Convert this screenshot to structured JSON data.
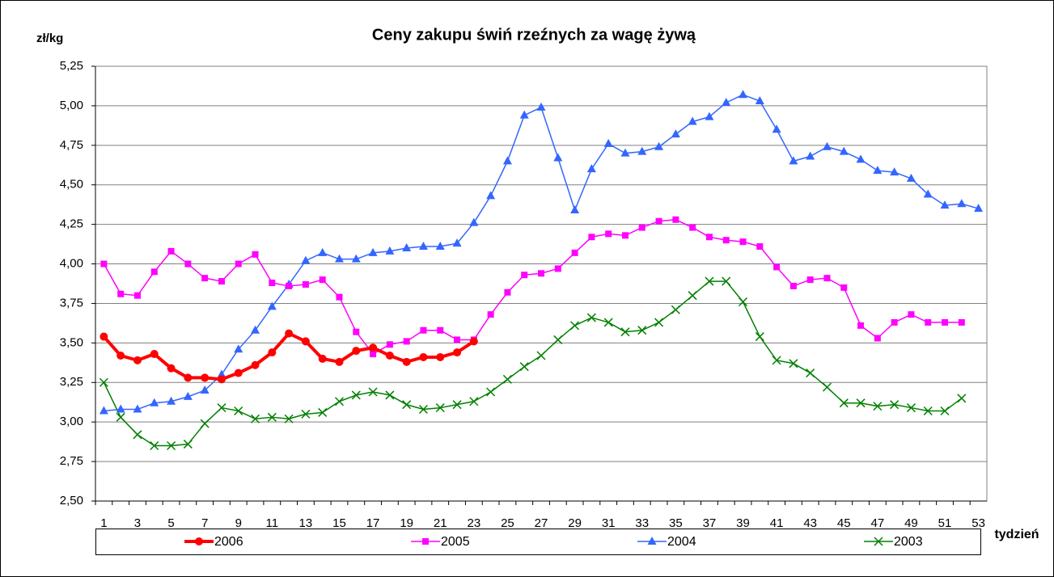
{
  "chart_data": {
    "type": "line",
    "title": "Ceny zakupu świń rzeźnych za wagę żywą",
    "y_label": "zł/kg",
    "x_label": "tydzień",
    "categories": [
      1,
      null,
      3,
      null,
      5,
      null,
      7,
      null,
      9,
      null,
      11,
      null,
      13,
      null,
      15,
      null,
      17,
      null,
      19,
      null,
      21,
      null,
      23,
      null,
      25,
      null,
      27,
      null,
      29,
      null,
      31,
      null,
      33,
      null,
      35,
      null,
      37,
      null,
      39,
      null,
      41,
      null,
      43,
      null,
      45,
      null,
      47,
      null,
      49,
      null,
      51,
      null,
      53
    ],
    "ylim": [
      2.5,
      5.25
    ],
    "yticks": [
      {
        "value": 2.5,
        "label": "2,50"
      },
      {
        "value": 2.75,
        "label": "2,75"
      },
      {
        "value": 3.0,
        "label": "3,00"
      },
      {
        "value": 3.25,
        "label": "3,25"
      },
      {
        "value": 3.5,
        "label": "3,50"
      },
      {
        "value": 3.75,
        "label": "3,75"
      },
      {
        "value": 4.0,
        "label": "4,00"
      },
      {
        "value": 4.25,
        "label": "4,25"
      },
      {
        "value": 4.5,
        "label": "4,50"
      },
      {
        "value": 4.75,
        "label": "4,75"
      },
      {
        "value": 5.0,
        "label": "5,00"
      },
      {
        "value": 5.25,
        "label": "5,25"
      }
    ],
    "grid": true,
    "legend": "bottom",
    "series": [
      {
        "name": "2006",
        "color": "#ff0000",
        "marker": "circle",
        "line_width": 4,
        "values": [
          3.54,
          3.42,
          3.39,
          3.43,
          3.34,
          3.28,
          3.28,
          3.27,
          3.31,
          3.36,
          3.44,
          3.56,
          3.51,
          3.4,
          3.38,
          3.45,
          3.47,
          3.42,
          3.38,
          3.41,
          3.41,
          3.44,
          3.51,
          null,
          null,
          null,
          null,
          null,
          null,
          null,
          null,
          null,
          null,
          null,
          null,
          null,
          null,
          null,
          null,
          null,
          null,
          null,
          null,
          null,
          null,
          null,
          null,
          null,
          null,
          null,
          null,
          null,
          null
        ]
      },
      {
        "name": "2005",
        "color": "#ff00ff",
        "marker": "square",
        "line_width": 1.5,
        "values": [
          4.0,
          3.81,
          3.8,
          3.95,
          4.08,
          4.0,
          3.91,
          3.89,
          4.0,
          4.06,
          3.88,
          3.86,
          3.87,
          3.9,
          3.79,
          3.57,
          3.43,
          3.49,
          3.51,
          3.58,
          3.58,
          3.52,
          3.52,
          3.68,
          3.82,
          3.93,
          3.94,
          3.97,
          4.07,
          4.17,
          4.19,
          4.18,
          4.23,
          4.27,
          4.28,
          4.23,
          4.17,
          4.15,
          4.14,
          4.11,
          3.98,
          3.86,
          3.9,
          3.91,
          3.85,
          3.61,
          3.53,
          3.63,
          3.68,
          3.63,
          3.63,
          3.63,
          null
        ]
      },
      {
        "name": "2004",
        "color": "#3366ff",
        "marker": "triangle",
        "line_width": 1.5,
        "values": [
          3.07,
          3.08,
          3.08,
          3.12,
          3.13,
          3.16,
          3.2,
          3.3,
          3.46,
          3.58,
          3.73,
          3.87,
          4.02,
          4.07,
          4.03,
          4.03,
          4.07,
          4.08,
          4.1,
          4.11,
          4.11,
          4.13,
          4.26,
          4.43,
          4.65,
          4.94,
          4.99,
          4.67,
          4.34,
          4.6,
          4.76,
          4.7,
          4.71,
          4.74,
          4.82,
          4.9,
          4.93,
          5.02,
          5.07,
          5.03,
          4.85,
          4.65,
          4.68,
          4.74,
          4.71,
          4.66,
          4.59,
          4.58,
          4.54,
          4.44,
          4.37,
          4.38,
          4.35
        ]
      },
      {
        "name": "2003",
        "color": "#008000",
        "marker": "x",
        "line_width": 1.5,
        "values": [
          3.25,
          3.03,
          2.92,
          2.85,
          2.85,
          2.86,
          2.99,
          3.09,
          3.07,
          3.02,
          3.03,
          3.02,
          3.05,
          3.06,
          3.13,
          3.17,
          3.19,
          3.17,
          3.11,
          3.08,
          3.09,
          3.11,
          3.13,
          3.19,
          3.27,
          3.35,
          3.42,
          3.52,
          3.61,
          3.66,
          3.63,
          3.57,
          3.58,
          3.63,
          3.71,
          3.8,
          3.89,
          3.89,
          3.76,
          3.54,
          3.39,
          3.37,
          3.31,
          3.22,
          3.12,
          3.12,
          3.1,
          3.11,
          3.09,
          3.07,
          3.07,
          3.15,
          null
        ]
      }
    ]
  }
}
